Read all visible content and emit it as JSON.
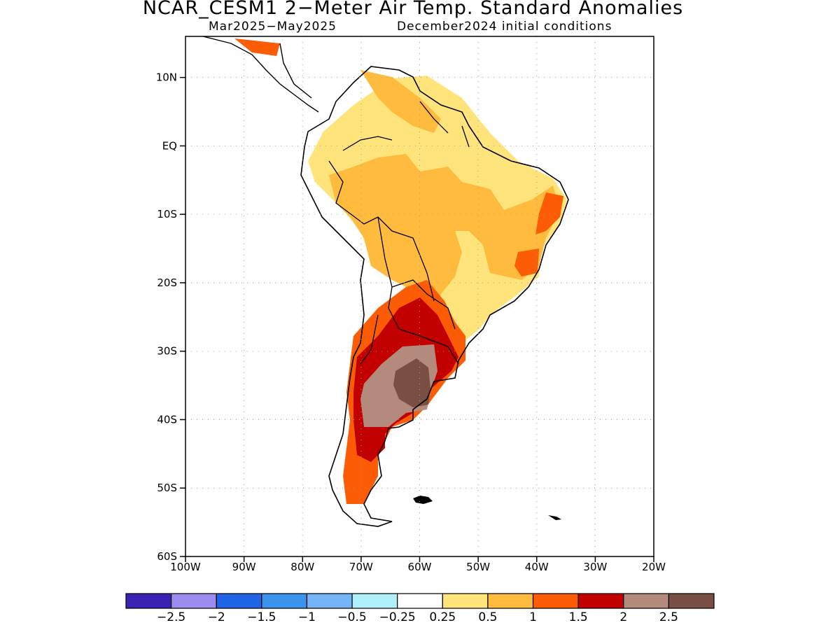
{
  "title": "NCAR_CESM1 2−Meter Air Temp. Standard Anomalies",
  "subtitle_left": "Mar2025−May2025",
  "subtitle_right": "December2024 initial conditions",
  "chart_data": {
    "type": "map",
    "region": "South America",
    "lon_range": [
      -100,
      -20
    ],
    "lat_range": [
      -60,
      16
    ],
    "grid": true,
    "lat_ticks": [
      {
        "value": 10,
        "label": "10N"
      },
      {
        "value": 0,
        "label": "EQ"
      },
      {
        "value": -10,
        "label": "10S"
      },
      {
        "value": -20,
        "label": "20S"
      },
      {
        "value": -30,
        "label": "30S"
      },
      {
        "value": -40,
        "label": "40S"
      },
      {
        "value": -50,
        "label": "50S"
      },
      {
        "value": -60,
        "label": "60S"
      }
    ],
    "lon_ticks": [
      {
        "value": -100,
        "label": "100W"
      },
      {
        "value": -90,
        "label": "90W"
      },
      {
        "value": -80,
        "label": "80W"
      },
      {
        "value": -70,
        "label": "70W"
      },
      {
        "value": -60,
        "label": "60W"
      },
      {
        "value": -50,
        "label": "50W"
      },
      {
        "value": -40,
        "label": "40W"
      },
      {
        "value": -30,
        "label": "30W"
      },
      {
        "value": -20,
        "label": "20W"
      }
    ],
    "colorbar": {
      "colors": [
        "#3b22b5",
        "#9c8cf0",
        "#1f63e6",
        "#3c93ee",
        "#74b4f7",
        "#aff0fa",
        "#ffffff",
        "#ffe47c",
        "#ffbb3d",
        "#fc5c06",
        "#c20000",
        "#b48a7c",
        "#7a4f43"
      ],
      "labels": [
        "−2.5",
        "−2",
        "−1.5",
        "−1",
        "−0.5",
        "−0.25",
        "0.25",
        "0.5",
        "1",
        "1.5",
        "2",
        "2.5"
      ]
    },
    "regions": [
      {
        "level": "0.25-0.5",
        "color": "#ffe47c",
        "area": "Colombia, Venezuela, northern Brazil and Peru (broad)"
      },
      {
        "level": "0.5-1",
        "color": "#ffbb3d",
        "area": "Amazon basin, Bolivia, Paraguay, northeast Brazil"
      },
      {
        "level": "1-1.5",
        "color": "#fc5c06",
        "area": "northern Argentina, Paraguay, central Chile, Patagonia coast, eastern Brazil coast"
      },
      {
        "level": "1.5-2",
        "color": "#c20000",
        "area": "Argentina 25S-45S, southern Chile"
      },
      {
        "level": "2-2.5",
        "color": "#b48a7c",
        "area": "central Argentina"
      },
      {
        "level": ">2.5",
        "color": "#7a4f43",
        "area": "Buenos Aires / La Pampa core"
      }
    ]
  }
}
